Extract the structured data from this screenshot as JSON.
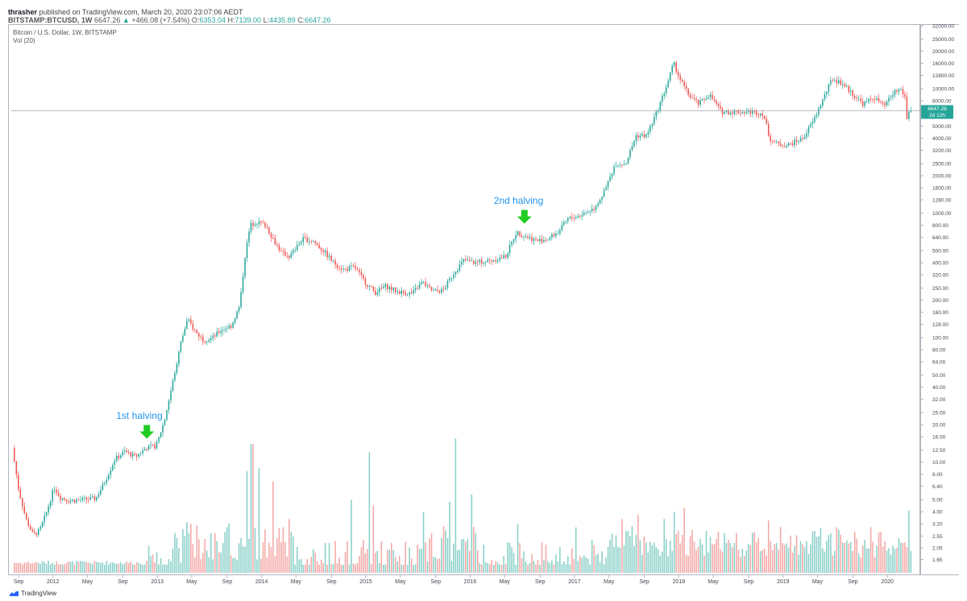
{
  "header": {
    "author": "thrasher",
    "published_text": "published on TradingView.com, March 20, 2020 23:07:06 AEDT",
    "symbol": "BITSTAMP:BTCUSD, 1W",
    "last": "6647.26",
    "change_arrow": "▲",
    "change": "+466.08 (+7.54%)",
    "o_label": "O:",
    "o": "6353.04",
    "h_label": "H:",
    "h": "7139.00",
    "l_label": "L:",
    "l": "4435.89",
    "c_label": "C:",
    "c": "6647.26"
  },
  "legend": {
    "title": "Bitcoin / U.S. Dollar, 1W, BITSTAMP",
    "vol": "Vol (20)"
  },
  "footer": {
    "brand": "TradingView",
    "logo_icon": "tradingview-logo-icon"
  },
  "price_tag": {
    "value": "6647.26",
    "countdown": "2d 12h",
    "color": "#26a69a"
  },
  "colors": {
    "up": "#26a69a",
    "down": "#ef5350",
    "vol_up": "#89d0c8",
    "vol_down": "#f4a8a6",
    "annotation": "#2196f3",
    "arrow": "#22cc22"
  },
  "chart_data": {
    "type": "candlestick",
    "title": "Bitcoin / U.S. Dollar, 1W, BITSTAMP",
    "y_scale": "log",
    "ylim": [
      1.5,
      32000
    ],
    "y_ticks": [
      "32000.00",
      "25000.00",
      "20000.00",
      "16000.00",
      "12800.00",
      "10000.00",
      "8000.00",
      "6400.00",
      "5000.00",
      "4000.00",
      "3200.00",
      "2500.00",
      "2000.00",
      "1600.00",
      "1280.00",
      "1000.00",
      "800.00",
      "640.00",
      "500.00",
      "400.00",
      "320.00",
      "250.00",
      "200.00",
      "160.00",
      "128.00",
      "100.00",
      "80.00",
      "64.00",
      "50.00",
      "40.00",
      "32.00",
      "25.00",
      "20.00",
      "16.00",
      "12.50",
      "10.00",
      "8.00",
      "6.40",
      "5.00",
      "4.00",
      "3.20",
      "2.55",
      "2.05",
      "1.65"
    ],
    "x_labels": [
      {
        "label": "Sep",
        "t": 2011.67
      },
      {
        "label": "2012",
        "t": 2012.0
      },
      {
        "label": "May",
        "t": 2012.33
      },
      {
        "label": "Sep",
        "t": 2012.67
      },
      {
        "label": "2013",
        "t": 2013.0
      },
      {
        "label": "May",
        "t": 2013.33
      },
      {
        "label": "Sep",
        "t": 2013.67
      },
      {
        "label": "2014",
        "t": 2014.0
      },
      {
        "label": "May",
        "t": 2014.33
      },
      {
        "label": "Sep",
        "t": 2014.67
      },
      {
        "label": "2015",
        "t": 2015.0
      },
      {
        "label": "May",
        "t": 2015.33
      },
      {
        "label": "Sep",
        "t": 2015.67
      },
      {
        "label": "2016",
        "t": 2016.0
      },
      {
        "label": "May",
        "t": 2016.33
      },
      {
        "label": "Sep",
        "t": 2016.67
      },
      {
        "label": "2017",
        "t": 2017.0
      },
      {
        "label": "May",
        "t": 2017.33
      },
      {
        "label": "Sep",
        "t": 2017.67
      },
      {
        "label": "2018",
        "t": 2018.0
      },
      {
        "label": "May",
        "t": 2018.33
      },
      {
        "label": "Sep",
        "t": 2018.67
      },
      {
        "label": "2019",
        "t": 2019.0
      },
      {
        "label": "May",
        "t": 2019.33
      },
      {
        "label": "Sep",
        "t": 2019.67
      },
      {
        "label": "2020",
        "t": 2020.0
      }
    ],
    "x_range": [
      2011.6,
      2020.3
    ],
    "price_path": [
      [
        2011.62,
        13.0
      ],
      [
        2011.68,
        6.0
      ],
      [
        2011.75,
        3.5
      ],
      [
        2011.82,
        2.6
      ],
      [
        2011.88,
        2.8
      ],
      [
        2011.95,
        4.0
      ],
      [
        2012.02,
        6.3
      ],
      [
        2012.08,
        5.2
      ],
      [
        2012.17,
        4.9
      ],
      [
        2012.3,
        5.0
      ],
      [
        2012.42,
        5.1
      ],
      [
        2012.5,
        6.8
      ],
      [
        2012.6,
        10.5
      ],
      [
        2012.7,
        12.2
      ],
      [
        2012.8,
        11.0
      ],
      [
        2012.9,
        13.0
      ],
      [
        2013.0,
        13.5
      ],
      [
        2013.08,
        22.0
      ],
      [
        2013.16,
        45.0
      ],
      [
        2013.24,
        95.0
      ],
      [
        2013.3,
        140.0
      ],
      [
        2013.38,
        110.0
      ],
      [
        2013.46,
        95.0
      ],
      [
        2013.54,
        100.0
      ],
      [
        2013.62,
        115.0
      ],
      [
        2013.72,
        125.0
      ],
      [
        2013.8,
        180.0
      ],
      [
        2013.85,
        450.0
      ],
      [
        2013.9,
        800.0
      ],
      [
        2013.96,
        850.0
      ],
      [
        2014.05,
        800.0
      ],
      [
        2014.12,
        620.0
      ],
      [
        2014.2,
        480.0
      ],
      [
        2014.28,
        450.0
      ],
      [
        2014.4,
        620.0
      ],
      [
        2014.5,
        600.0
      ],
      [
        2014.6,
        500.0
      ],
      [
        2014.7,
        400.0
      ],
      [
        2014.8,
        350.0
      ],
      [
        2014.9,
        370.0
      ],
      [
        2015.0,
        280.0
      ],
      [
        2015.1,
        230.0
      ],
      [
        2015.2,
        260.0
      ],
      [
        2015.3,
        235.0
      ],
      [
        2015.45,
        225.0
      ],
      [
        2015.55,
        280.0
      ],
      [
        2015.65,
        235.0
      ],
      [
        2015.75,
        240.0
      ],
      [
        2015.85,
        330.0
      ],
      [
        2015.95,
        420.0
      ],
      [
        2016.05,
        400.0
      ],
      [
        2016.2,
        415.0
      ],
      [
        2016.35,
        450.0
      ],
      [
        2016.45,
        700.0
      ],
      [
        2016.55,
        650.0
      ],
      [
        2016.65,
        600.0
      ],
      [
        2016.75,
        620.0
      ],
      [
        2016.85,
        700.0
      ],
      [
        2016.95,
        900.0
      ],
      [
        2017.05,
        950.0
      ],
      [
        2017.2,
        1100.0
      ],
      [
        2017.3,
        1500.0
      ],
      [
        2017.4,
        2500.0
      ],
      [
        2017.5,
        2500.0
      ],
      [
        2017.6,
        4200.0
      ],
      [
        2017.7,
        4200.0
      ],
      [
        2017.8,
        6500.0
      ],
      [
        2017.9,
        11000.0
      ],
      [
        2017.96,
        16000.0
      ],
      [
        2018.02,
        12000.0
      ],
      [
        2018.1,
        9000.0
      ],
      [
        2018.2,
        7500.0
      ],
      [
        2018.3,
        9000.0
      ],
      [
        2018.42,
        6500.0
      ],
      [
        2018.55,
        6500.0
      ],
      [
        2018.7,
        6500.0
      ],
      [
        2018.82,
        6300.0
      ],
      [
        2018.88,
        4000.0
      ],
      [
        2018.95,
        3600.0
      ],
      [
        2019.05,
        3500.0
      ],
      [
        2019.2,
        4000.0
      ],
      [
        2019.3,
        5500.0
      ],
      [
        2019.4,
        8500.0
      ],
      [
        2019.48,
        12000.0
      ],
      [
        2019.58,
        11000.0
      ],
      [
        2019.68,
        9000.0
      ],
      [
        2019.78,
        7500.0
      ],
      [
        2019.88,
        8500.0
      ],
      [
        2019.98,
        7200.0
      ],
      [
        2020.08,
        9500.0
      ],
      [
        2020.14,
        9800.0
      ],
      [
        2020.18,
        8500.0
      ],
      [
        2020.2,
        5300.0
      ],
      [
        2020.21,
        6647.26
      ]
    ],
    "volume_spikes": [
      {
        "t": 2013.24,
        "v": 2.9
      },
      {
        "t": 2013.32,
        "v": 3.2
      },
      {
        "t": 2013.85,
        "v": 8.5
      },
      {
        "t": 2013.9,
        "v": 14.0
      },
      {
        "t": 2013.96,
        "v": 9.0
      },
      {
        "t": 2014.1,
        "v": 7.0
      },
      {
        "t": 2014.25,
        "v": 3.5
      },
      {
        "t": 2014.85,
        "v": 5.0
      },
      {
        "t": 2015.02,
        "v": 12.0
      },
      {
        "t": 2015.07,
        "v": 4.5
      },
      {
        "t": 2015.55,
        "v": 4.0
      },
      {
        "t": 2015.8,
        "v": 4.8
      },
      {
        "t": 2015.85,
        "v": 15.5
      },
      {
        "t": 2016.0,
        "v": 5.5
      },
      {
        "t": 2016.45,
        "v": 3.2
      },
      {
        "t": 2017.0,
        "v": 3.0
      },
      {
        "t": 2017.45,
        "v": 3.5
      },
      {
        "t": 2017.6,
        "v": 3.8
      },
      {
        "t": 2017.85,
        "v": 3.5
      },
      {
        "t": 2017.95,
        "v": 4.0
      },
      {
        "t": 2018.05,
        "v": 4.3
      },
      {
        "t": 2018.85,
        "v": 3.4
      },
      {
        "t": 2019.3,
        "v": 2.8
      },
      {
        "t": 2019.5,
        "v": 3.0
      },
      {
        "t": 2020.2,
        "v": 4.1
      }
    ],
    "annotations": [
      {
        "label": "1st halving",
        "t": 2012.9,
        "price": 13.5
      },
      {
        "label": "2nd halving",
        "t": 2016.52,
        "price": 720.0
      }
    ]
  }
}
